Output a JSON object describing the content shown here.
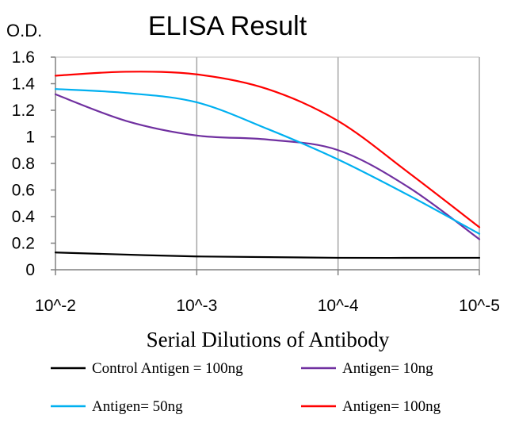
{
  "chart_data": {
    "type": "line",
    "title": "ELISA Result",
    "ylabel": "O.D.",
    "xlabel": "Serial Dilutions of Antibody",
    "x_tick_labels": [
      "10^-2",
      "10^-3",
      "10^-4",
      "10^-5"
    ],
    "x": [
      0.01,
      0.001,
      0.0001,
      1e-05
    ],
    "y_tick_labels": [
      "0",
      "0.2",
      "0.4",
      "0.6",
      "0.8",
      "1",
      "1.2",
      "1.4",
      "1.6"
    ],
    "ylim": [
      0,
      1.6
    ],
    "grid": "vertical",
    "legend_position": "bottom",
    "series": [
      {
        "name": "Control Antigen = 100ng",
        "color": "#000000",
        "points": [
          [
            0.01,
            0.13
          ],
          [
            0.001,
            0.1
          ],
          [
            0.0001,
            0.09
          ],
          [
            1e-05,
            0.09
          ]
        ]
      },
      {
        "name": "Antigen= 10ng",
        "color": "#7030a0",
        "points": [
          [
            0.01,
            1.32
          ],
          [
            0.003162,
            1.12
          ],
          [
            0.001,
            1.01
          ],
          [
            0.0003162,
            0.98
          ],
          [
            0.0001,
            0.9
          ],
          [
            3.162e-05,
            0.62
          ],
          [
            1e-05,
            0.23
          ]
        ]
      },
      {
        "name": "Antigen= 50ng",
        "color": "#00b0f0",
        "points": [
          [
            0.01,
            1.36
          ],
          [
            0.003162,
            1.33
          ],
          [
            0.001,
            1.26
          ],
          [
            0.0003162,
            1.06
          ],
          [
            0.0001,
            0.83
          ],
          [
            3.162e-05,
            0.56
          ],
          [
            1e-05,
            0.27
          ]
        ]
      },
      {
        "name": "Antigen= 100ng",
        "color": "#ff0000",
        "points": [
          [
            0.01,
            1.46
          ],
          [
            0.003162,
            1.49
          ],
          [
            0.001,
            1.47
          ],
          [
            0.0003162,
            1.36
          ],
          [
            0.0001,
            1.12
          ],
          [
            3.162e-05,
            0.73
          ],
          [
            1e-05,
            0.32
          ]
        ]
      }
    ]
  }
}
